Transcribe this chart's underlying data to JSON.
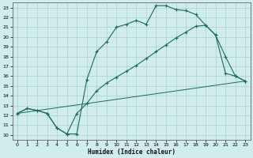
{
  "xlabel": "Humidex (Indice chaleur)",
  "bg_color": "#d0ecec",
  "line_color": "#1a6b5a",
  "grid_color": "#b0d4d4",
  "xlim": [
    -0.5,
    23.5
  ],
  "ylim": [
    9.5,
    23.5
  ],
  "xticks": [
    0,
    1,
    2,
    3,
    4,
    5,
    6,
    7,
    8,
    9,
    10,
    11,
    12,
    13,
    14,
    15,
    16,
    17,
    18,
    19,
    20,
    21,
    22,
    23
  ],
  "yticks": [
    10,
    11,
    12,
    13,
    14,
    15,
    16,
    17,
    18,
    19,
    20,
    21,
    22,
    23
  ],
  "curve1_x": [
    0,
    1,
    2,
    3,
    4,
    5,
    6,
    7,
    8,
    9,
    10,
    11,
    12,
    13,
    14,
    15,
    16,
    17,
    18,
    19,
    20,
    21,
    22,
    23
  ],
  "curve1_y": [
    12.2,
    12.7,
    12.5,
    12.2,
    10.7,
    10.1,
    10.1,
    15.6,
    18.5,
    19.5,
    21.0,
    21.3,
    21.7,
    21.3,
    23.2,
    23.2,
    22.8,
    22.7,
    22.3,
    21.2,
    20.2,
    18.0,
    16.0,
    15.5
  ],
  "curve2_x": [
    0,
    1,
    2,
    3,
    4,
    5,
    6,
    7,
    8,
    9,
    10,
    11,
    12,
    13,
    14,
    15,
    16,
    17,
    18,
    19,
    20,
    21,
    22,
    23
  ],
  "curve2_y": [
    12.2,
    12.7,
    12.5,
    12.2,
    10.7,
    10.1,
    12.2,
    13.2,
    14.5,
    15.3,
    15.9,
    16.5,
    17.1,
    17.8,
    18.5,
    19.2,
    19.9,
    20.5,
    21.1,
    21.2,
    20.2,
    16.3,
    16.0,
    15.5
  ],
  "curve3_x": [
    0,
    23
  ],
  "curve3_y": [
    12.2,
    15.5
  ]
}
